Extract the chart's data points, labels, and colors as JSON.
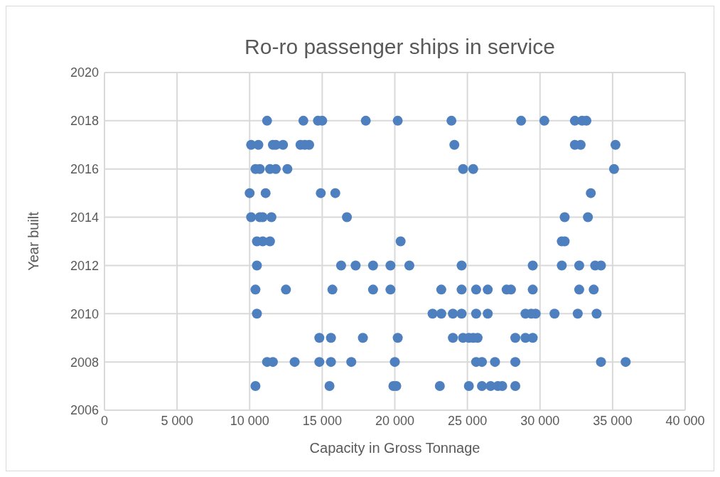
{
  "chart_data": {
    "type": "scatter",
    "title": "Ro-ro passenger ships in service",
    "xlabel": "Capacity in Gross Tonnage",
    "ylabel": "Year built",
    "xlim": [
      0,
      40000
    ],
    "xticks": [
      0,
      {
        "value": 5000,
        "label": "5 000"
      },
      {
        "value": 10000,
        "label": "10 000"
      },
      {
        "value": 15000,
        "label": "15 000"
      },
      {
        "value": 20000,
        "label": "20 000"
      },
      {
        "value": 25000,
        "label": "25 000"
      },
      {
        "value": 30000,
        "label": "30 000"
      },
      {
        "value": 35000,
        "label": "35 000"
      },
      {
        "value": 40000,
        "label": "40 000"
      }
    ],
    "ylim": [
      2006,
      2020
    ],
    "yticks": [
      2006,
      2008,
      2010,
      2012,
      2014,
      2016,
      2018,
      2020
    ],
    "grid": true,
    "marker": "circle",
    "series": [
      {
        "color": "#4e7fbe",
        "x": [
          11200,
          13700,
          14700,
          15000,
          18000,
          20200,
          23900,
          28700,
          30300,
          32400,
          32900,
          33200,
          10100,
          10600,
          11600,
          11800,
          12300,
          13500,
          13800,
          14100,
          24100,
          32400,
          32800,
          35200,
          10400,
          10700,
          11400,
          11800,
          12600,
          24700,
          25400,
          35100,
          10000,
          11100,
          14900,
          15900,
          33500,
          10100,
          10700,
          10900,
          11500,
          16700,
          31700,
          33300,
          10500,
          10900,
          11400,
          20400,
          31500,
          31700,
          10500,
          16300,
          17300,
          18500,
          19700,
          21000,
          24600,
          29500,
          31500,
          32700,
          33800,
          34200,
          10400,
          12500,
          15700,
          18500,
          19700,
          23200,
          24600,
          25600,
          26400,
          27700,
          28000,
          29500,
          32700,
          33700,
          10500,
          22600,
          23200,
          24000,
          24600,
          25600,
          26400,
          29000,
          29400,
          29700,
          31000,
          32600,
          33900,
          14800,
          15600,
          17800,
          20200,
          24000,
          24700,
          25100,
          25400,
          25700,
          28300,
          29000,
          29500,
          11200,
          11600,
          13100,
          14800,
          15600,
          17000,
          20000,
          25600,
          26000,
          26900,
          28300,
          34200,
          35900,
          10400,
          15500,
          19900,
          20100,
          23100,
          25100,
          26000,
          26600,
          27100,
          27400,
          28300
        ],
        "values": [
          2018,
          2018,
          2018,
          2018,
          2018,
          2018,
          2018,
          2018,
          2018,
          2018,
          2018,
          2018,
          2017,
          2017,
          2017,
          2017,
          2017,
          2017,
          2017,
          2017,
          2017,
          2017,
          2017,
          2017,
          2016,
          2016,
          2016,
          2016,
          2016,
          2016,
          2016,
          2016,
          2015,
          2015,
          2015,
          2015,
          2015,
          2014,
          2014,
          2014,
          2014,
          2014,
          2014,
          2014,
          2013,
          2013,
          2013,
          2013,
          2013,
          2013,
          2012,
          2012,
          2012,
          2012,
          2012,
          2012,
          2012,
          2012,
          2012,
          2012,
          2012,
          2012,
          2011,
          2011,
          2011,
          2011,
          2011,
          2011,
          2011,
          2011,
          2011,
          2011,
          2011,
          2011,
          2011,
          2011,
          2010,
          2010,
          2010,
          2010,
          2010,
          2010,
          2010,
          2010,
          2010,
          2010,
          2010,
          2010,
          2010,
          2009,
          2009,
          2009,
          2009,
          2009,
          2009,
          2009,
          2009,
          2009,
          2009,
          2009,
          2009,
          2008,
          2008,
          2008,
          2008,
          2008,
          2008,
          2008,
          2008,
          2008,
          2008,
          2008,
          2008,
          2008,
          2007,
          2007,
          2007,
          2007,
          2007,
          2007,
          2007,
          2007,
          2007,
          2007,
          2007
        ]
      }
    ]
  }
}
